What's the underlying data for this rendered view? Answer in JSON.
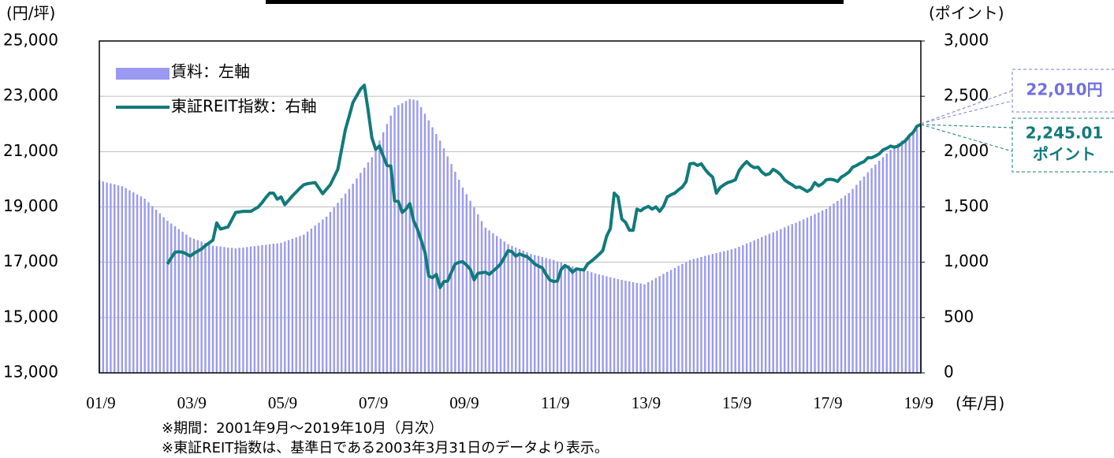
{
  "chart_data": {
    "type": "bar-line",
    "y_label": "(円/坪)",
    "y2_label": "(ポイント)",
    "x_label": "(年/月)",
    "notes": [
      "※期間：2001年9月～2019年10月（月次）",
      "※東証REIT指数は、基準日である2003年3月31日のデータより表示。"
    ],
    "annotations": [
      "22,010円",
      "2,245.01",
      "ポイント"
    ],
    "legend": "top-left",
    "categories": [
      "01/9",
      null,
      null,
      null,
      null,
      null,
      null,
      null,
      null,
      null,
      null,
      null,
      null,
      null,
      null,
      null,
      null,
      null,
      null,
      null,
      null,
      null,
      null,
      null,
      "03/9",
      null,
      null,
      null,
      null,
      null,
      null,
      null,
      null,
      null,
      null,
      null,
      null,
      null,
      null,
      null,
      null,
      null,
      null,
      null,
      null,
      null,
      null,
      null,
      "05/9",
      null,
      null,
      null,
      null,
      null,
      null,
      null,
      null,
      null,
      null,
      null,
      null,
      null,
      null,
      null,
      null,
      null,
      null,
      null,
      null,
      null,
      null,
      null,
      "07/9",
      null,
      null,
      null,
      null,
      null,
      null,
      null,
      null,
      null,
      null,
      null,
      null,
      null,
      null,
      null,
      null,
      null,
      null,
      null,
      null,
      null,
      null,
      null,
      "09/9",
      null,
      null,
      null,
      null,
      null,
      null,
      null,
      null,
      null,
      null,
      null,
      null,
      null,
      null,
      null,
      null,
      null,
      null,
      null,
      null,
      null,
      null,
      null,
      "11/9",
      null,
      null,
      null,
      null,
      null,
      null,
      null,
      null,
      null,
      null,
      null,
      null,
      null,
      null,
      null,
      null,
      null,
      null,
      null,
      null,
      null,
      null,
      null,
      "13/9",
      null,
      null,
      null,
      null,
      null,
      null,
      null,
      null,
      null,
      null,
      null,
      null,
      null,
      null,
      null,
      null,
      null,
      null,
      null,
      null,
      null,
      null,
      null,
      "15/9",
      null,
      null,
      null,
      null,
      null,
      null,
      null,
      null,
      null,
      null,
      null,
      null,
      null,
      null,
      null,
      null,
      null,
      null,
      null,
      null,
      null,
      null,
      null,
      "17/9",
      null,
      null,
      null,
      null,
      null,
      null,
      null,
      null,
      null,
      null,
      null,
      null,
      null,
      null,
      null,
      null,
      null,
      null,
      null,
      null,
      null,
      null,
      null,
      "19/9",
      null
    ],
    "series": [
      {
        "name": "賃料：左軸",
        "color": "#9a9af2",
        "kind": "bar",
        "values": [
          19950,
          19920,
          19880,
          19850,
          19820,
          19780,
          19750,
          19680,
          19600,
          19530,
          19450,
          19380,
          19300,
          19170,
          19030,
          18900,
          18770,
          18630,
          18500,
          18400,
          18300,
          18200,
          18100,
          18000,
          17900,
          17850,
          17800,
          17750,
          17700,
          17650,
          17600,
          17580,
          17570,
          17550,
          17530,
          17520,
          17500,
          17520,
          17530,
          17550,
          17570,
          17580,
          17600,
          17620,
          17630,
          17650,
          17670,
          17680,
          17700,
          17750,
          17800,
          17850,
          17900,
          17950,
          18000,
          18110,
          18220,
          18330,
          18430,
          18540,
          18650,
          18820,
          18980,
          19150,
          19320,
          19480,
          19650,
          19840,
          20030,
          20230,
          20420,
          20610,
          20800,
          21100,
          21400,
          21700,
          22000,
          22300,
          22600,
          22680,
          22750,
          22830,
          22900,
          22880,
          22850,
          22610,
          22370,
          22130,
          21880,
          21640,
          21400,
          21120,
          20830,
          20550,
          20270,
          19980,
          19700,
          19460,
          19220,
          18980,
          18730,
          18490,
          18250,
          18150,
          18050,
          17950,
          17850,
          17750,
          17650,
          17590,
          17530,
          17480,
          17420,
          17360,
          17300,
          17260,
          17230,
          17190,
          17150,
          17120,
          17080,
          17030,
          16990,
          16940,
          16890,
          16850,
          16800,
          16760,
          16720,
          16680,
          16640,
          16600,
          16560,
          16530,
          16490,
          16460,
          16430,
          16390,
          16360,
          16330,
          16310,
          16280,
          16250,
          16230,
          16200,
          16280,
          16350,
          16430,
          16500,
          16580,
          16650,
          16720,
          16790,
          16870,
          16940,
          17010,
          17080,
          17120,
          17150,
          17190,
          17230,
          17260,
          17300,
          17330,
          17370,
          17400,
          17430,
          17470,
          17500,
          17560,
          17620,
          17680,
          17730,
          17790,
          17850,
          17910,
          17970,
          18030,
          18080,
          18140,
          18200,
          18260,
          18320,
          18380,
          18430,
          18490,
          18550,
          18610,
          18680,
          18740,
          18800,
          18870,
          18930,
          19030,
          19120,
          19220,
          19310,
          19410,
          19500,
          19650,
          19800,
          19950,
          20100,
          20250,
          20400,
          20530,
          20670,
          20800,
          20930,
          21070,
          21200,
          21300,
          21400,
          21500,
          21600,
          21700,
          21800,
          22010
        ]
      },
      {
        "name": "東証REIT指数：右軸",
        "color": "#117a7a",
        "kind": "line",
        "axis": "y2",
        "values": [
          null,
          null,
          null,
          null,
          null,
          null,
          null,
          null,
          null,
          null,
          null,
          null,
          null,
          null,
          null,
          null,
          null,
          null,
          984,
          1040,
          1090,
          1095,
          1090,
          1075,
          1055,
          1080,
          1100,
          1120,
          1150,
          1175,
          1200,
          1355,
          1300,
          1310,
          1320,
          1385,
          1450,
          1455,
          1460,
          1460,
          1460,
          1480,
          1500,
          1540,
          1585,
          1625,
          1625,
          1570,
          1590,
          1520,
          1560,
          1600,
          1635,
          1670,
          1700,
          1710,
          1715,
          1720,
          1670,
          1620,
          1660,
          1700,
          1770,
          1840,
          2020,
          2200,
          2320,
          2445,
          2505,
          2565,
          2600,
          2375,
          2125,
          2020,
          2050,
          1960,
          1875,
          1870,
          1555,
          1550,
          1450,
          1480,
          1530,
          1375,
          1300,
          1200,
          1090,
          875,
          860,
          890,
          770,
          825,
          830,
          910,
          985,
          1000,
          1005,
          975,
          935,
          840,
          900,
          905,
          910,
          890,
          920,
          950,
          985,
          1045,
          1105,
          1095,
          1055,
          1075,
          1060,
          1050,
          1020,
          985,
          965,
          950,
          890,
          840,
          825,
          830,
          935,
          970,
          950,
          910,
          940,
          935,
          930,
          985,
          1010,
          1040,
          1070,
          1105,
          1235,
          1305,
          1625,
          1590,
          1390,
          1360,
          1290,
          1290,
          1480,
          1465,
          1490,
          1505,
          1480,
          1500,
          1460,
          1505,
          1590,
          1610,
          1625,
          1655,
          1680,
          1730,
          1890,
          1895,
          1875,
          1890,
          1840,
          1800,
          1770,
          1625,
          1675,
          1700,
          1720,
          1730,
          1745,
          1830,
          1875,
          1910,
          1875,
          1855,
          1860,
          1815,
          1790,
          1800,
          1840,
          1820,
          1790,
          1745,
          1720,
          1700,
          1675,
          1680,
          1660,
          1640,
          1660,
          1720,
          1690,
          1710,
          1745,
          1750,
          1745,
          1730,
          1770,
          1790,
          1815,
          1860,
          1875,
          1895,
          1910,
          1945,
          1945,
          1960,
          1980,
          2015,
          2030,
          2050,
          2040,
          2050,
          2075,
          2100,
          2145,
          2175,
          2230,
          2245.01
        ]
      }
    ],
    "ylim": [
      13000,
      25000
    ],
    "yticks": [
      {
        "value": 13000,
        "label": "13,000"
      },
      {
        "value": 15000,
        "label": "15,000"
      },
      {
        "value": 17000,
        "label": "17,000"
      },
      {
        "value": 19000,
        "label": "19,000"
      },
      {
        "value": 21000,
        "label": "21,000"
      },
      {
        "value": 23000,
        "label": "23,000"
      },
      {
        "value": 25000,
        "label": "25,000"
      }
    ],
    "y2lim": [
      0,
      3000
    ],
    "y2ticks": [
      0,
      500,
      {
        "value": 1000,
        "label": "1,000"
      },
      {
        "value": 1500,
        "label": "1,500"
      },
      {
        "value": 2000,
        "label": "2,000"
      },
      {
        "value": 2500,
        "label": "2,500"
      },
      {
        "value": 3000,
        "label": "3,000"
      }
    ],
    "grid": true
  }
}
